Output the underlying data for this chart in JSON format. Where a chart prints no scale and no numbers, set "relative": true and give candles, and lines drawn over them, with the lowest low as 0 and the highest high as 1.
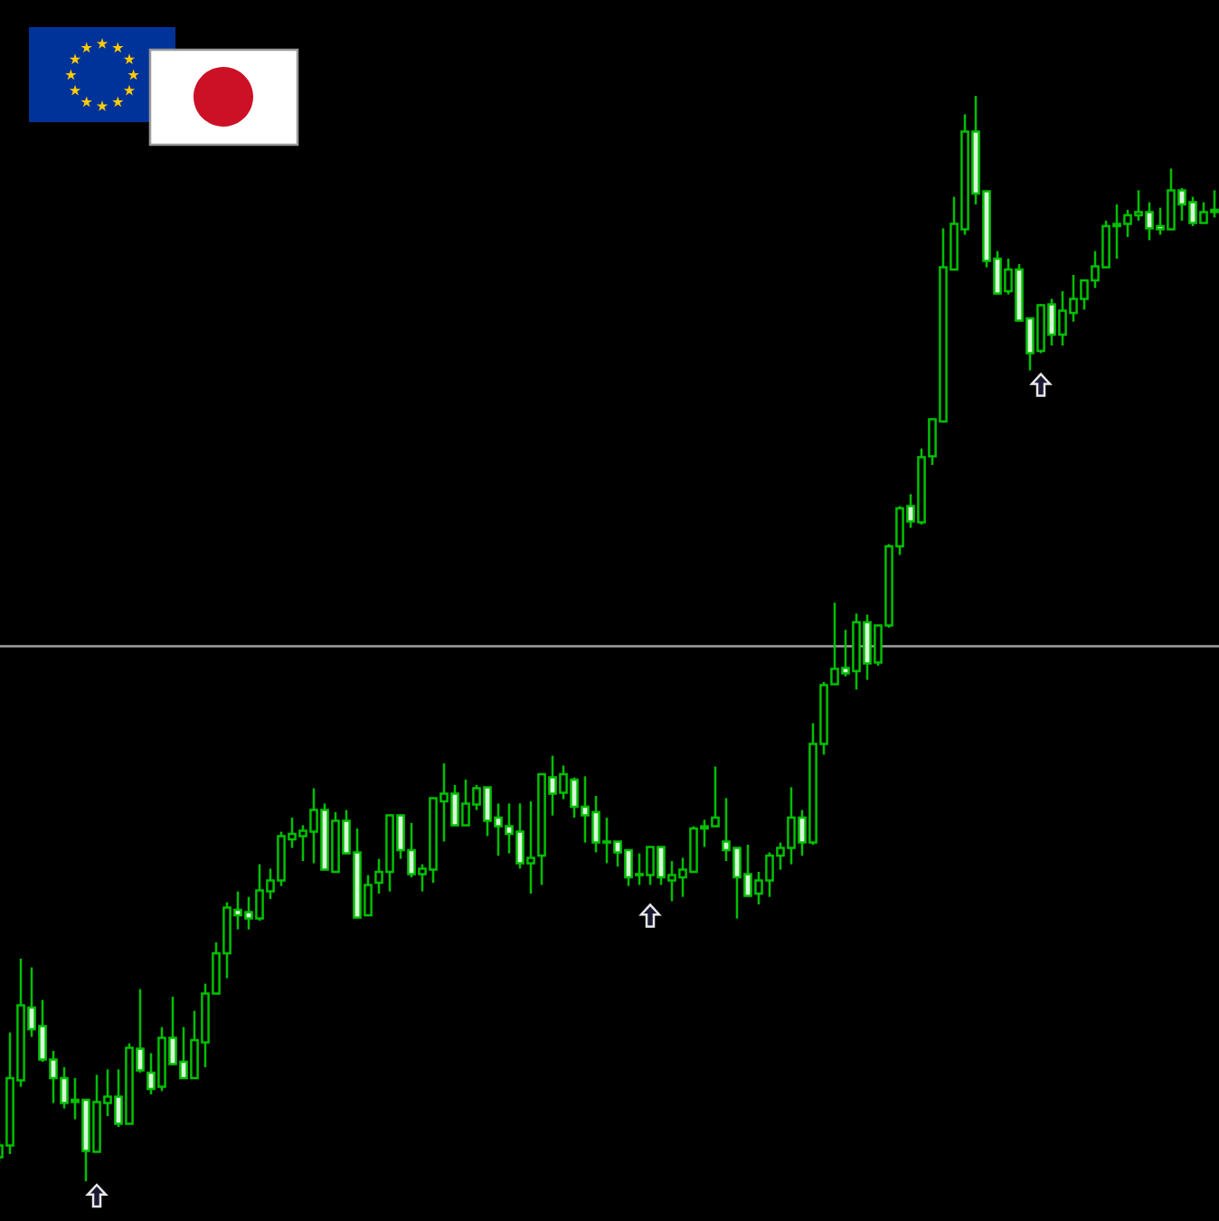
{
  "chart_data": {
    "type": "candlestick",
    "relative": true,
    "color": "#00c000",
    "categories": [
      null,
      null,
      null,
      null,
      null,
      null,
      null,
      null,
      null,
      null,
      null,
      null,
      null,
      null,
      null,
      null,
      null,
      null,
      null,
      null,
      null,
      null,
      null,
      null,
      null,
      null,
      null,
      null,
      null,
      null,
      null,
      null,
      null,
      null,
      null,
      null,
      null,
      null,
      null,
      null,
      null,
      null,
      null,
      null,
      null,
      null,
      null,
      null,
      null,
      null,
      null,
      null,
      null,
      null,
      null,
      null,
      null,
      null,
      null,
      null,
      null,
      null,
      null,
      null,
      null,
      null,
      null,
      null,
      null,
      null,
      null,
      null,
      null,
      null,
      null,
      null,
      null,
      null,
      null,
      null,
      null,
      null,
      null,
      null,
      null,
      null,
      null,
      null,
      null,
      null,
      null,
      null,
      null,
      null,
      null,
      null,
      null,
      null,
      null,
      null,
      null,
      null,
      null,
      null,
      null,
      null,
      null,
      null,
      null,
      null,
      null,
      null,
      null
    ],
    "ohlc": [
      [
        0.022,
        0.037,
        0.018,
        0.033
      ],
      [
        0.033,
        0.137,
        0.025,
        0.095
      ],
      [
        0.093,
        0.205,
        0.087,
        0.162
      ],
      [
        0.16,
        0.197,
        0.133,
        0.14
      ],
      [
        0.143,
        0.167,
        0.11,
        0.112
      ],
      [
        0.112,
        0.12,
        0.072,
        0.095
      ],
      [
        0.095,
        0.105,
        0.067,
        0.072
      ],
      [
        0.075,
        0.095,
        0.057,
        0.073
      ],
      [
        0.075,
        0.075,
        0.0,
        0.028
      ],
      [
        0.027,
        0.098,
        0.027,
        0.073
      ],
      [
        0.072,
        0.103,
        0.06,
        0.078
      ],
      [
        0.078,
        0.103,
        0.05,
        0.053
      ],
      [
        0.053,
        0.127,
        0.053,
        0.123
      ],
      [
        0.122,
        0.177,
        0.1,
        0.102
      ],
      [
        0.1,
        0.118,
        0.08,
        0.085
      ],
      [
        0.087,
        0.142,
        0.083,
        0.132
      ],
      [
        0.132,
        0.17,
        0.107,
        0.108
      ],
      [
        0.11,
        0.142,
        0.095,
        0.095
      ],
      [
        0.095,
        0.157,
        0.095,
        0.13
      ],
      [
        0.128,
        0.182,
        0.105,
        0.173
      ],
      [
        0.173,
        0.22,
        0.172,
        0.21
      ],
      [
        0.21,
        0.257,
        0.187,
        0.252
      ],
      [
        0.25,
        0.267,
        0.232,
        0.245
      ],
      [
        0.248,
        0.262,
        0.232,
        0.242
      ],
      [
        0.242,
        0.292,
        0.24,
        0.268
      ],
      [
        0.267,
        0.288,
        0.26,
        0.277
      ],
      [
        0.277,
        0.322,
        0.272,
        0.318
      ],
      [
        0.315,
        0.335,
        0.307,
        0.32
      ],
      [
        0.318,
        0.328,
        0.295,
        0.323
      ],
      [
        0.322,
        0.362,
        0.293,
        0.342
      ],
      [
        0.342,
        0.348,
        0.287,
        0.287
      ],
      [
        0.285,
        0.34,
        0.285,
        0.332
      ],
      [
        0.332,
        0.342,
        0.302,
        0.302
      ],
      [
        0.303,
        0.325,
        0.242,
        0.243
      ],
      [
        0.245,
        0.282,
        0.245,
        0.273
      ],
      [
        0.275,
        0.297,
        0.265,
        0.285
      ],
      [
        0.285,
        0.338,
        0.267,
        0.337
      ],
      [
        0.337,
        0.338,
        0.297,
        0.305
      ],
      [
        0.305,
        0.33,
        0.28,
        0.283
      ],
      [
        0.283,
        0.292,
        0.267,
        0.288
      ],
      [
        0.287,
        0.353,
        0.275,
        0.353
      ],
      [
        0.35,
        0.385,
        0.313,
        0.357
      ],
      [
        0.357,
        0.365,
        0.327,
        0.328
      ],
      [
        0.328,
        0.37,
        0.328,
        0.348
      ],
      [
        0.347,
        0.365,
        0.342,
        0.362
      ],
      [
        0.363,
        0.363,
        0.318,
        0.332
      ],
      [
        0.335,
        0.348,
        0.3,
        0.327
      ],
      [
        0.327,
        0.348,
        0.302,
        0.32
      ],
      [
        0.322,
        0.348,
        0.288,
        0.293
      ],
      [
        0.293,
        0.35,
        0.265,
        0.298
      ],
      [
        0.3,
        0.375,
        0.273,
        0.375
      ],
      [
        0.372,
        0.392,
        0.337,
        0.357
      ],
      [
        0.358,
        0.383,
        0.352,
        0.375
      ],
      [
        0.37,
        0.372,
        0.335,
        0.345
      ],
      [
        0.345,
        0.373,
        0.312,
        0.337
      ],
      [
        0.34,
        0.355,
        0.303,
        0.312
      ],
      [
        0.313,
        0.335,
        0.293,
        0.312
      ],
      [
        0.313,
        0.313,
        0.29,
        0.303
      ],
      [
        0.305,
        0.305,
        0.272,
        0.28
      ],
      [
        0.283,
        0.302,
        0.273,
        0.282
      ],
      [
        0.282,
        0.308,
        0.273,
        0.308
      ],
      [
        0.308,
        0.308,
        0.273,
        0.28
      ],
      [
        0.277,
        0.295,
        0.258,
        0.282
      ],
      [
        0.28,
        0.298,
        0.262,
        0.287
      ],
      [
        0.285,
        0.327,
        0.285,
        0.325
      ],
      [
        0.325,
        0.333,
        0.308,
        0.327
      ],
      [
        0.327,
        0.382,
        0.327,
        0.335
      ],
      [
        0.313,
        0.353,
        0.295,
        0.305
      ],
      [
        0.307,
        0.307,
        0.242,
        0.28
      ],
      [
        0.283,
        0.31,
        0.262,
        0.263
      ],
      [
        0.265,
        0.285,
        0.255,
        0.277
      ],
      [
        0.277,
        0.303,
        0.262,
        0.3
      ],
      [
        0.3,
        0.312,
        0.287,
        0.307
      ],
      [
        0.307,
        0.363,
        0.292,
        0.335
      ],
      [
        0.335,
        0.342,
        0.3,
        0.312
      ],
      [
        0.312,
        0.422,
        0.31,
        0.403
      ],
      [
        0.403,
        0.46,
        0.393,
        0.457
      ],
      [
        0.458,
        0.533,
        0.458,
        0.472
      ],
      [
        0.473,
        0.508,
        0.465,
        0.468
      ],
      [
        0.47,
        0.523,
        0.453,
        0.515
      ],
      [
        0.515,
        0.522,
        0.462,
        0.477
      ],
      [
        0.478,
        0.512,
        0.475,
        0.512
      ],
      [
        0.512,
        0.587,
        0.51,
        0.585
      ],
      [
        0.585,
        0.622,
        0.577,
        0.62
      ],
      [
        0.622,
        0.633,
        0.602,
        0.608
      ],
      [
        0.607,
        0.675,
        0.605,
        0.667
      ],
      [
        0.668,
        0.702,
        0.66,
        0.702
      ],
      [
        0.7,
        0.878,
        0.7,
        0.842
      ],
      [
        0.84,
        0.907,
        0.84,
        0.882
      ],
      [
        0.877,
        0.983,
        0.872,
        0.967
      ],
      [
        0.967,
        1.0,
        0.9,
        0.91
      ],
      [
        0.912,
        0.912,
        0.842,
        0.848
      ],
      [
        0.85,
        0.857,
        0.817,
        0.818
      ],
      [
        0.82,
        0.85,
        0.817,
        0.84
      ],
      [
        0.84,
        0.845,
        0.793,
        0.793
      ],
      [
        0.795,
        0.795,
        0.747,
        0.763
      ],
      [
        0.765,
        0.808,
        0.763,
        0.807
      ],
      [
        0.808,
        0.813,
        0.77,
        0.78
      ],
      [
        0.78,
        0.82,
        0.77,
        0.802
      ],
      [
        0.8,
        0.835,
        0.792,
        0.813
      ],
      [
        0.813,
        0.83,
        0.803,
        0.83
      ],
      [
        0.83,
        0.857,
        0.823,
        0.843
      ],
      [
        0.842,
        0.885,
        0.842,
        0.88
      ],
      [
        0.88,
        0.9,
        0.85,
        0.882
      ],
      [
        0.882,
        0.895,
        0.87,
        0.89
      ],
      [
        0.89,
        0.913,
        0.885,
        0.893
      ],
      [
        0.893,
        0.902,
        0.867,
        0.878
      ],
      [
        0.88,
        0.897,
        0.872,
        0.877
      ],
      [
        0.877,
        0.933,
        0.877,
        0.913
      ],
      [
        0.913,
        0.915,
        0.885,
        0.9
      ],
      [
        0.902,
        0.907,
        0.88,
        0.883
      ],
      [
        0.883,
        0.902,
        0.883,
        0.893
      ],
      [
        0.893,
        0.913,
        0.888,
        0.895
      ]
    ],
    "ref_lines": [
      {
        "axis": "y",
        "value": 0.493,
        "color": "#a0a0a0"
      }
    ]
  }
}
